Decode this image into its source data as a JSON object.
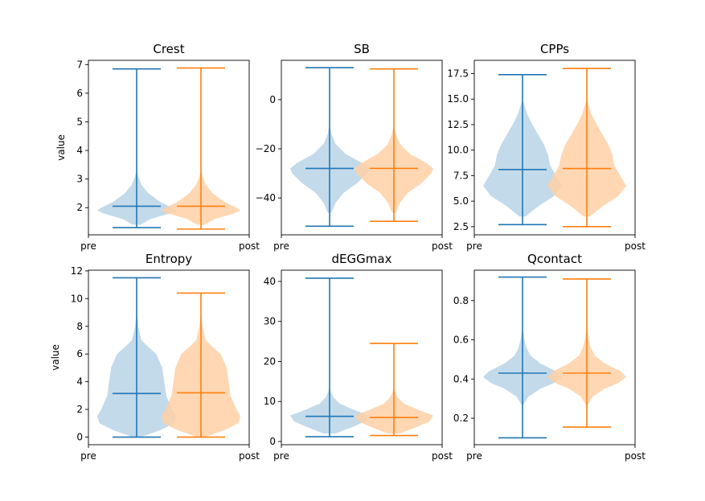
{
  "colors": {
    "pre_line": "#1f77b4",
    "pre_fill": "#b9d3e8",
    "post_line": "#ff7f0e",
    "post_fill": "#ffd0a6"
  },
  "chart_data": [
    {
      "type": "violin",
      "title": "Crest",
      "ylabel": "value",
      "categories": [
        "pre",
        "post"
      ],
      "ylim": [
        1.05,
        7.15
      ],
      "yticks": [
        2,
        3,
        4,
        5,
        6,
        7
      ],
      "ytick_labels": [
        "2",
        "3",
        "4",
        "5",
        "6",
        "7"
      ],
      "series": [
        {
          "category": "pre",
          "min": 1.3,
          "median": 2.05,
          "max": 6.85,
          "density_y": [
            1.4,
            1.6,
            1.8,
            1.9,
            2.0,
            2.2,
            2.5,
            2.8,
            3.1,
            3.3
          ],
          "density_w": [
            0.1,
            0.35,
            0.85,
            1.0,
            0.9,
            0.6,
            0.3,
            0.12,
            0.04,
            0.0
          ]
        },
        {
          "category": "post",
          "min": 1.25,
          "median": 2.05,
          "max": 6.88,
          "density_y": [
            1.4,
            1.6,
            1.8,
            1.9,
            2.0,
            2.2,
            2.5,
            2.8,
            3.1,
            3.3
          ],
          "density_w": [
            0.1,
            0.35,
            0.85,
            1.0,
            0.9,
            0.6,
            0.3,
            0.12,
            0.04,
            0.0
          ]
        }
      ]
    },
    {
      "type": "violin",
      "title": "SB",
      "ylabel": "",
      "categories": [
        "pre",
        "post"
      ],
      "ylim": [
        -55,
        16
      ],
      "yticks": [
        0,
        -20,
        -40
      ],
      "ytick_labels": [
        "0",
        "−20",
        "−40"
      ],
      "series": [
        {
          "category": "pre",
          "min": -51.5,
          "median": -28,
          "max": 13,
          "density_y": [
            -46,
            -42,
            -38,
            -34,
            -30,
            -28,
            -26,
            -22,
            -18,
            -14,
            -10
          ],
          "density_w": [
            0.05,
            0.15,
            0.35,
            0.7,
            0.95,
            1.0,
            0.85,
            0.4,
            0.15,
            0.05,
            0.0
          ]
        },
        {
          "category": "post",
          "min": -49.5,
          "median": -28,
          "max": 12.5,
          "density_y": [
            -46,
            -42,
            -38,
            -34,
            -30,
            -28,
            -26,
            -22,
            -18,
            -14,
            -10
          ],
          "density_w": [
            0.05,
            0.15,
            0.35,
            0.7,
            0.95,
            1.0,
            0.85,
            0.4,
            0.15,
            0.05,
            0.0
          ]
        }
      ]
    },
    {
      "type": "violin",
      "title": "CPPs",
      "ylabel": "",
      "categories": [
        "pre",
        "post"
      ],
      "ylim": [
        1.7,
        18.8
      ],
      "yticks": [
        2.5,
        5.0,
        7.5,
        10.0,
        12.5,
        15.0,
        17.5
      ],
      "ytick_labels": [
        "2.5",
        "5.0",
        "7.5",
        "10.0",
        "12.5",
        "15.0",
        "17.5"
      ],
      "series": [
        {
          "category": "pre",
          "min": 2.7,
          "median": 8.1,
          "max": 17.4,
          "density_y": [
            3.5,
            4.5,
            5.5,
            6.5,
            7.5,
            8.5,
            9.5,
            10.5,
            11.5,
            12.5,
            13.5,
            14.5,
            15.0
          ],
          "density_w": [
            0.08,
            0.4,
            0.8,
            1.0,
            0.85,
            0.7,
            0.65,
            0.55,
            0.4,
            0.25,
            0.12,
            0.04,
            0.0
          ]
        },
        {
          "category": "post",
          "min": 2.5,
          "median": 8.2,
          "max": 18.0,
          "density_y": [
            3.5,
            4.5,
            5.5,
            6.5,
            7.5,
            8.5,
            9.5,
            10.5,
            11.5,
            12.5,
            13.5,
            14.5,
            15.0
          ],
          "density_w": [
            0.08,
            0.4,
            0.8,
            1.0,
            0.85,
            0.7,
            0.65,
            0.55,
            0.4,
            0.25,
            0.12,
            0.04,
            0.0
          ]
        }
      ]
    },
    {
      "type": "violin",
      "title": "Entropy",
      "ylabel": "value",
      "categories": [
        "pre",
        "post"
      ],
      "ylim": [
        -0.55,
        12.05
      ],
      "yticks": [
        0,
        2,
        4,
        6,
        8,
        10,
        12
      ],
      "ytick_labels": [
        "0",
        "2",
        "4",
        "6",
        "8",
        "10",
        "12"
      ],
      "series": [
        {
          "category": "pre",
          "min": 0.0,
          "median": 3.15,
          "max": 11.5,
          "density_y": [
            0.0,
            0.5,
            1.0,
            1.5,
            2.0,
            3.0,
            4.0,
            5.0,
            6.0,
            6.5,
            7.0,
            8.0,
            9.0
          ],
          "density_w": [
            0.1,
            0.6,
            0.95,
            1.0,
            0.9,
            0.75,
            0.7,
            0.65,
            0.5,
            0.3,
            0.12,
            0.04,
            0.0
          ]
        },
        {
          "category": "post",
          "min": 0.0,
          "median": 3.2,
          "max": 10.4,
          "density_y": [
            0.0,
            0.5,
            1.0,
            1.5,
            2.0,
            3.0,
            4.0,
            5.0,
            6.0,
            6.5,
            7.0,
            8.0,
            9.0
          ],
          "density_w": [
            0.1,
            0.6,
            0.95,
            1.0,
            0.9,
            0.75,
            0.7,
            0.65,
            0.5,
            0.3,
            0.12,
            0.04,
            0.0
          ]
        }
      ]
    },
    {
      "type": "violin",
      "title": "dEGGmax",
      "ylabel": "",
      "categories": [
        "pre",
        "post"
      ],
      "ylim": [
        -0.8,
        42.8
      ],
      "yticks": [
        0,
        10,
        20,
        30,
        40
      ],
      "ytick_labels": [
        "0",
        "10",
        "20",
        "30",
        "40"
      ],
      "series": [
        {
          "category": "pre",
          "min": 1.2,
          "median": 6.3,
          "max": 40.8,
          "density_y": [
            2.0,
            3.5,
            5.0,
            6.5,
            8.0,
            9.5,
            11.0,
            12.5,
            14.0
          ],
          "density_w": [
            0.15,
            0.55,
            0.9,
            1.0,
            0.6,
            0.25,
            0.1,
            0.03,
            0.0
          ]
        },
        {
          "category": "post",
          "min": 1.5,
          "median": 6.0,
          "max": 24.5,
          "density_y": [
            2.0,
            3.5,
            5.0,
            6.5,
            8.0,
            9.5,
            11.0,
            12.5,
            14.0
          ],
          "density_w": [
            0.15,
            0.55,
            0.9,
            1.0,
            0.6,
            0.25,
            0.1,
            0.03,
            0.0
          ]
        }
      ]
    },
    {
      "type": "violin",
      "title": "Qcontact",
      "ylabel": "",
      "categories": [
        "pre",
        "post"
      ],
      "ylim": [
        0.065,
        0.955
      ],
      "yticks": [
        0.2,
        0.4,
        0.6,
        0.8
      ],
      "ytick_labels": [
        "0.2",
        "0.4",
        "0.6",
        "0.8"
      ],
      "series": [
        {
          "category": "pre",
          "min": 0.1,
          "median": 0.43,
          "max": 0.92,
          "density_y": [
            0.27,
            0.31,
            0.35,
            0.38,
            0.41,
            0.44,
            0.48,
            0.52,
            0.56,
            0.6,
            0.64,
            0.66
          ],
          "density_w": [
            0.03,
            0.15,
            0.45,
            0.8,
            1.0,
            0.85,
            0.45,
            0.2,
            0.1,
            0.05,
            0.02,
            0.0
          ]
        },
        {
          "category": "post",
          "min": 0.155,
          "median": 0.43,
          "max": 0.91,
          "density_y": [
            0.27,
            0.31,
            0.35,
            0.38,
            0.41,
            0.44,
            0.48,
            0.52,
            0.56,
            0.6,
            0.64,
            0.66
          ],
          "density_w": [
            0.03,
            0.15,
            0.45,
            0.8,
            1.0,
            0.85,
            0.45,
            0.2,
            0.1,
            0.05,
            0.02,
            0.0
          ]
        }
      ]
    }
  ]
}
